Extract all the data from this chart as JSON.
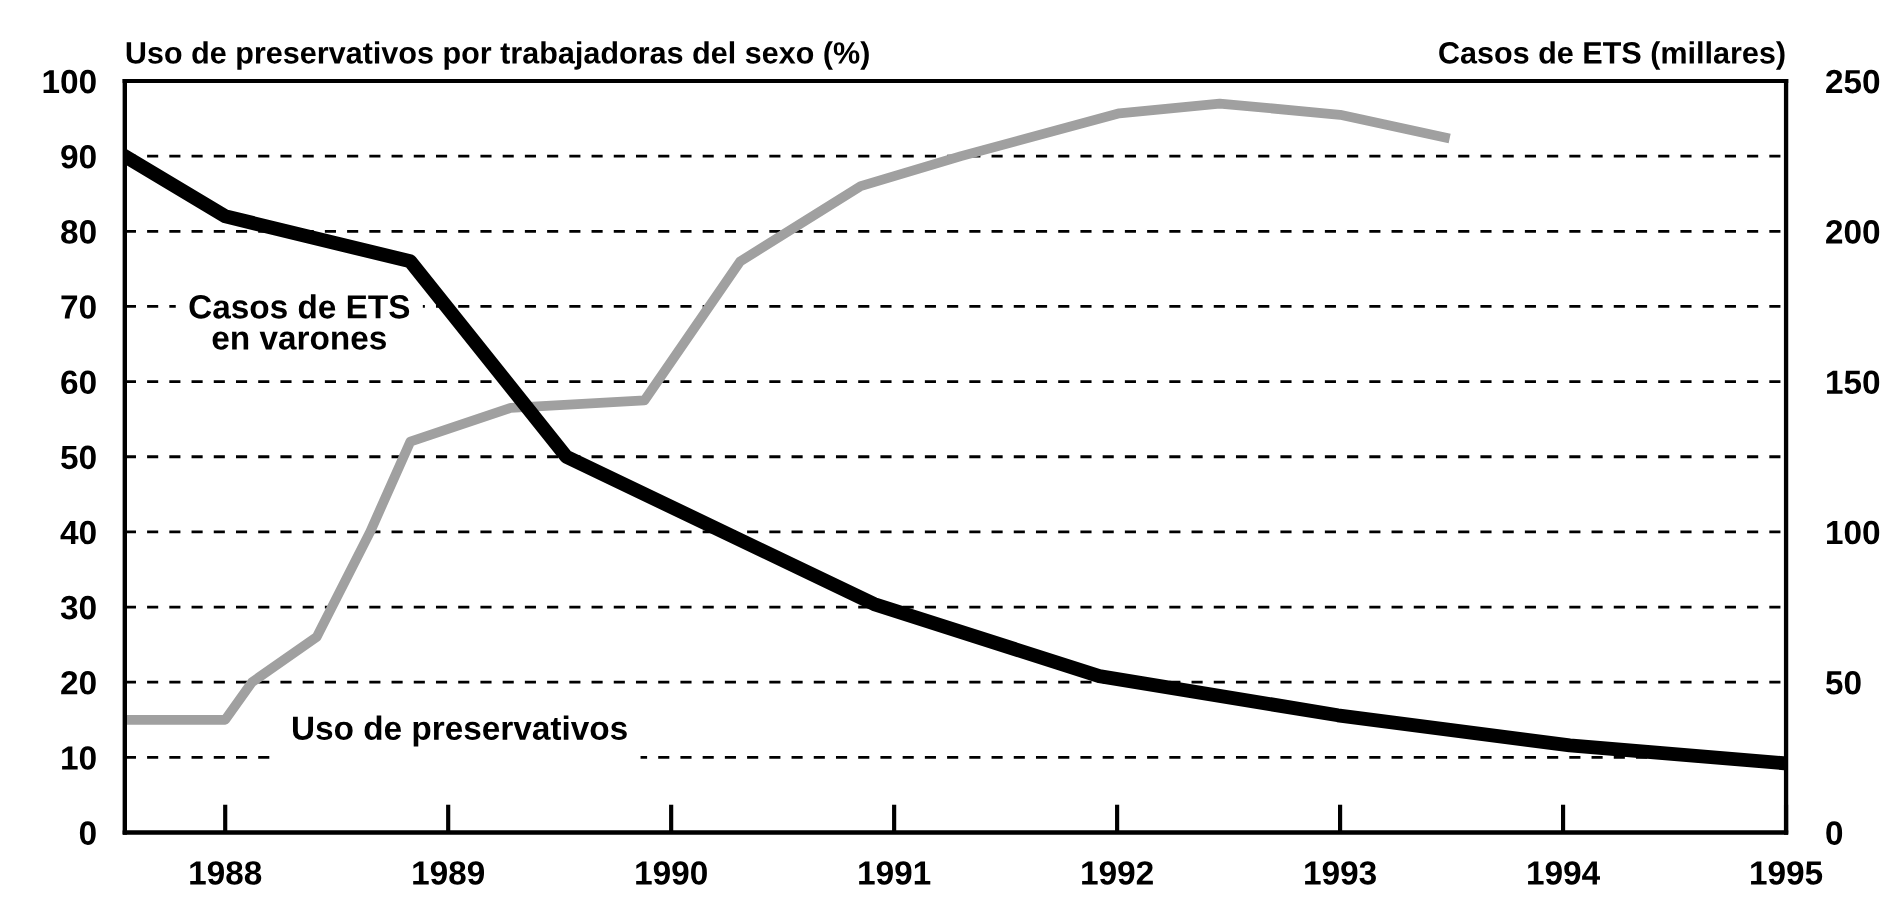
{
  "chart_data": {
    "type": "line",
    "ylabel": "Uso de preservativos por trabajadoras del sexo (%)",
    "y2label": "Casos de ETS (millares)",
    "series": [
      {
        "name": "Casos de ETS\nen varones",
        "color": "#000000",
        "axis": "y2",
        "x": [
          1987.55,
          1988.0,
          1988.83,
          1989.53,
          1990.91,
          1991.92,
          1992.99,
          1994.03,
          1995.0
        ],
        "values": [
          225,
          205,
          190,
          125,
          76,
          52,
          39,
          29,
          23
        ]
      },
      {
        "name": "Uso de preservativos",
        "color": "#a0a0a0",
        "x": [
          1987.55,
          1988.0,
          1988.12,
          1988.41,
          1988.65,
          1988.83,
          1989.28,
          1989.88,
          1990.31,
          1990.85,
          1991.3,
          1992.01,
          1992.46,
          1993.0,
          1993.47
        ],
        "values": [
          15,
          15,
          20,
          26,
          40,
          52,
          56.5,
          57.5,
          76,
          86,
          90,
          95.7,
          97,
          95.5,
          92.5
        ]
      }
    ],
    "xlim": [
      1987.55,
      1995.0
    ],
    "xticks": [
      1988,
      1989,
      1990,
      1991,
      1992,
      1993,
      1994,
      1995
    ],
    "ylim": [
      0,
      100
    ],
    "yticks": [
      0,
      10,
      20,
      30,
      40,
      50,
      60,
      70,
      80,
      90,
      100
    ],
    "y2lim": [
      0,
      250
    ],
    "y2ticks": [
      0,
      50,
      100,
      150,
      200,
      250
    ],
    "grid": "y",
    "legend": false
  }
}
